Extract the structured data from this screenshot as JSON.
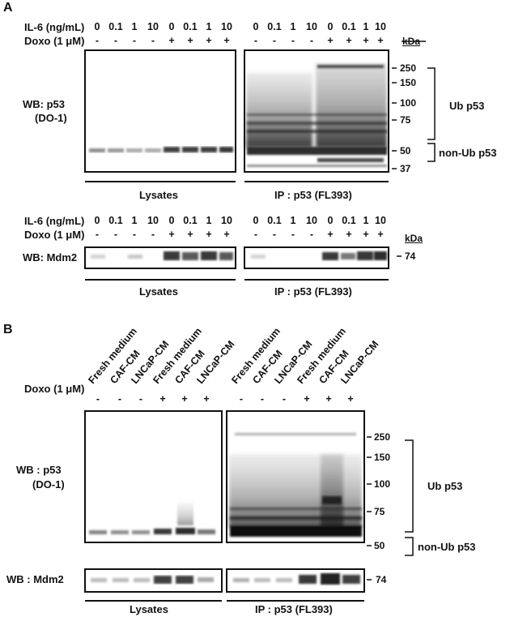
{
  "panelA": {
    "letter": "A",
    "il6_label": "IL-6 (ng/mL)",
    "doxo_label": "Doxo (1 μM)",
    "il6_values": [
      "0",
      "0.1",
      "1",
      "10",
      "0",
      "0.1",
      "1",
      "10"
    ],
    "doxo_values": [
      "-",
      "-",
      "-",
      "-",
      "+",
      "+",
      "+",
      "+"
    ],
    "kda_label": "kDa",
    "wb_p53_line1": "WB: p53",
    "wb_p53_line2": "(DO-1)",
    "wb_mdm2": "WB: Mdm2",
    "lysates": "Lysates",
    "ip": "IP : p53 (FL393)",
    "markers_top": [
      "250",
      "150",
      "100",
      "75",
      "50",
      "37"
    ],
    "marker_mdm2": "74",
    "ub_label": "Ub p53",
    "nonub_label": "non-Ub p53"
  },
  "panelB": {
    "letter": "B",
    "lane_labels": [
      "Fresh medium",
      "CAF-CM",
      "LNCaP-CM",
      "Fresh medium",
      "CAF-CM",
      "LNCaP-CM"
    ],
    "doxo_label": "Doxo (1 μM)",
    "doxo_values": [
      "-",
      "-",
      "-",
      "+",
      "+",
      "+"
    ],
    "wb_p53_line1": "WB : p53",
    "wb_p53_line2": "(DO-1)",
    "wb_mdm2": "WB : Mdm2",
    "lysates": "Lysates",
    "ip": "IP : p53 (FL393)",
    "markers_top": [
      "250",
      "150",
      "100",
      "75",
      "50"
    ],
    "marker_mdm2": "74",
    "ub_label": "Ub p53",
    "nonub_label": "non-Ub p53"
  }
}
